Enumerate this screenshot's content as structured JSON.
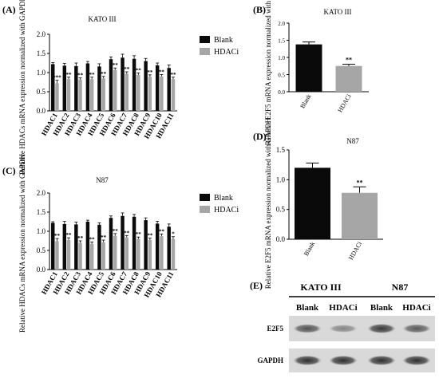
{
  "colors": {
    "blank": "#0a0a0a",
    "hdaci": "#a6a6a6",
    "axis": "#000000"
  },
  "panels": {
    "A": {
      "label": "(A)"
    },
    "B": {
      "label": "(B)"
    },
    "C": {
      "label": "(C)"
    },
    "D": {
      "label": "(D)"
    },
    "E": {
      "label": "(E)"
    }
  },
  "chart_data": [
    {
      "id": "A",
      "type": "bar",
      "title": "KATO III",
      "ylabel": "Relative HDACs mRNA expression normalized with GAPDH",
      "ylim": [
        0,
        2.0
      ],
      "yticks": [
        "0.0",
        "0.5",
        "1.0",
        "1.5",
        "2.0"
      ],
      "categories": [
        "HDAC1",
        "HDAC2",
        "HDAC3",
        "HDAC4",
        "HDAC5",
        "HDAC6",
        "HDAC7",
        "HDAC8",
        "HDAC9",
        "HDAC10",
        "HDAC11"
      ],
      "legend": "right",
      "series": [
        {
          "name": "Blank",
          "color": "#0a0a0a",
          "values": [
            1.22,
            1.18,
            1.17,
            1.24,
            1.16,
            1.35,
            1.39,
            1.36,
            1.3,
            1.19,
            1.12
          ],
          "errors": [
            0.04,
            0.06,
            0.08,
            0.05,
            0.07,
            0.06,
            0.09,
            0.08,
            0.07,
            0.06,
            0.08
          ]
        },
        {
          "name": "HDACi",
          "color": "#a6a6a6",
          "values": [
            0.72,
            0.83,
            0.82,
            0.83,
            0.85,
            1.07,
            0.97,
            0.94,
            0.89,
            0.9,
            0.83
          ],
          "errors": [
            0.08,
            0.05,
            0.04,
            0.05,
            0.05,
            0.05,
            0.05,
            0.05,
            0.05,
            0.05,
            0.05
          ]
        }
      ],
      "sig": [
        "***",
        "**",
        "**",
        "**",
        "**",
        "**",
        "**",
        "**",
        "**",
        "**",
        "**"
      ]
    },
    {
      "id": "B",
      "type": "bar",
      "title": "KATO III",
      "ylabel": "Relative E2F5 mRNA expression normalized with GAPDH",
      "ylim": [
        0,
        2.0
      ],
      "yticks": [
        "0.0",
        "0.5",
        "1.0",
        "1.5",
        "2.0"
      ],
      "categories": [
        "Blank",
        "HDACi"
      ],
      "series": [
        {
          "name": "",
          "values": [
            1.38,
            0.75
          ],
          "errors": [
            0.07,
            0.05
          ],
          "colors": [
            "#0a0a0a",
            "#a6a6a6"
          ]
        }
      ],
      "sig": [
        "",
        "**"
      ]
    },
    {
      "id": "C",
      "type": "bar",
      "title": "N87",
      "ylabel": "Relative HDACs mRNA expression normalized with GAPDH",
      "ylim": [
        0,
        2.0
      ],
      "yticks": [
        "0.0",
        "0.5",
        "1.0",
        "1.5",
        "2.0"
      ],
      "categories": [
        "HDAC1",
        "HDAC2",
        "HDAC3",
        "HDAC4",
        "HDAC5",
        "HDAC6",
        "HDAC7",
        "HDAC8",
        "HDAC9",
        "HDAC10",
        "HDAC11"
      ],
      "legend": "right",
      "series": [
        {
          "name": "Blank",
          "color": "#0a0a0a",
          "values": [
            1.22,
            1.19,
            1.18,
            1.25,
            1.17,
            1.35,
            1.4,
            1.38,
            1.29,
            1.2,
            1.12
          ],
          "errors": [
            0.03,
            0.07,
            0.06,
            0.04,
            0.05,
            0.05,
            0.08,
            0.06,
            0.06,
            0.06,
            0.07
          ]
        },
        {
          "name": "HDACi",
          "color": "#a6a6a6",
          "values": [
            0.74,
            0.77,
            0.7,
            0.67,
            0.71,
            0.88,
            0.84,
            0.8,
            0.77,
            0.87,
            0.8
          ],
          "errors": [
            0.07,
            0.06,
            0.05,
            0.05,
            0.06,
            0.06,
            0.05,
            0.05,
            0.05,
            0.06,
            0.06
          ]
        }
      ],
      "sig": [
        "**",
        "**",
        "**",
        "**",
        "**",
        "**",
        "**",
        "**",
        "**",
        "**",
        "*"
      ]
    },
    {
      "id": "D",
      "type": "bar",
      "title": "N87",
      "ylabel": "Relative E2F5 mRNA expression normalized with GAPDH",
      "ylim": [
        0,
        1.5
      ],
      "yticks": [
        "0.0",
        "0.5",
        "1.0",
        "1.5"
      ],
      "categories": [
        "Blank",
        "HDACi"
      ],
      "series": [
        {
          "name": "",
          "values": [
            1.2,
            0.78
          ],
          "errors": [
            0.08,
            0.1
          ],
          "colors": [
            "#0a0a0a",
            "#a6a6a6"
          ]
        }
      ],
      "sig": [
        "",
        "**"
      ]
    }
  ],
  "blot": {
    "group_labels": [
      "KATO III",
      "N87"
    ],
    "lane_labels": [
      "Blank",
      "HDACi",
      "Blank",
      "HDACi"
    ],
    "rows": [
      {
        "label": "E2F5",
        "intensity": [
          0.72,
          0.45,
          0.85,
          0.68
        ]
      },
      {
        "label": "GAPDH",
        "intensity": [
          0.9,
          0.9,
          0.9,
          0.9
        ]
      }
    ]
  }
}
